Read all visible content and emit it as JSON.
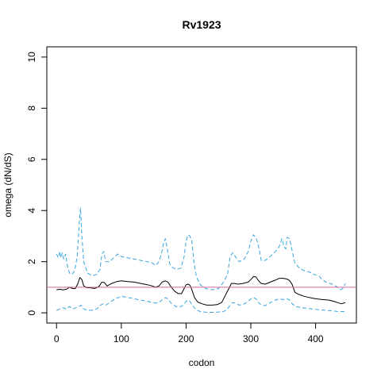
{
  "chart_data": {
    "type": "line",
    "title": "Rv1923",
    "xlabel": "codon",
    "ylabel": "omega (dN/dS)",
    "xlim": [
      -15,
      463
    ],
    "ylim": [
      -0.4,
      10.4
    ],
    "x_ticks": [
      0,
      100,
      200,
      300,
      400
    ],
    "y_ticks": [
      0,
      2,
      4,
      6,
      8,
      10
    ],
    "grid": false,
    "legend": "none",
    "reference_line": {
      "y": 1,
      "color": "#d0679b"
    },
    "series": [
      {
        "role": "upper",
        "color": "#39a6dc",
        "dash": true,
        "points": [
          [
            0,
            2.3
          ],
          [
            3,
            2.15
          ],
          [
            5,
            2.4
          ],
          [
            7,
            2.15
          ],
          [
            9,
            2.35
          ],
          [
            11,
            2.1
          ],
          [
            14,
            2.3
          ],
          [
            17,
            1.8
          ],
          [
            20,
            1.55
          ],
          [
            24,
            1.5
          ],
          [
            28,
            1.65
          ],
          [
            32,
            2.2
          ],
          [
            35,
            3.5
          ],
          [
            37,
            4.1
          ],
          [
            39,
            3.0
          ],
          [
            42,
            2.0
          ],
          [
            48,
            1.55
          ],
          [
            55,
            1.45
          ],
          [
            62,
            1.5
          ],
          [
            67,
            1.7
          ],
          [
            70,
            2.3
          ],
          [
            73,
            2.4
          ],
          [
            76,
            2.0
          ],
          [
            82,
            2.0
          ],
          [
            90,
            2.2
          ],
          [
            95,
            2.3
          ],
          [
            100,
            2.2
          ],
          [
            110,
            2.15
          ],
          [
            120,
            2.1
          ],
          [
            130,
            2.05
          ],
          [
            140,
            2.0
          ],
          [
            148,
            1.95
          ],
          [
            153,
            1.85
          ],
          [
            158,
            2.0
          ],
          [
            162,
            2.3
          ],
          [
            165,
            2.7
          ],
          [
            168,
            2.9
          ],
          [
            171,
            2.5
          ],
          [
            175,
            1.9
          ],
          [
            180,
            1.75
          ],
          [
            186,
            1.7
          ],
          [
            192,
            1.75
          ],
          [
            197,
            2.2
          ],
          [
            200,
            2.8
          ],
          [
            203,
            3.05
          ],
          [
            206,
            3.0
          ],
          [
            209,
            2.8
          ],
          [
            212,
            2.0
          ],
          [
            216,
            1.4
          ],
          [
            222,
            1.1
          ],
          [
            230,
            0.95
          ],
          [
            240,
            0.9
          ],
          [
            250,
            0.95
          ],
          [
            258,
            1.2
          ],
          [
            264,
            1.5
          ],
          [
            268,
            2.2
          ],
          [
            272,
            2.35
          ],
          [
            276,
            2.2
          ],
          [
            282,
            2.0
          ],
          [
            290,
            2.1
          ],
          [
            296,
            2.4
          ],
          [
            300,
            2.8
          ],
          [
            304,
            3.05
          ],
          [
            308,
            2.95
          ],
          [
            312,
            2.6
          ],
          [
            316,
            2.05
          ],
          [
            322,
            2.05
          ],
          [
            330,
            2.2
          ],
          [
            338,
            2.4
          ],
          [
            344,
            2.6
          ],
          [
            348,
            2.9
          ],
          [
            351,
            2.6
          ],
          [
            354,
            2.5
          ],
          [
            356,
            2.95
          ],
          [
            360,
            2.9
          ],
          [
            364,
            2.4
          ],
          [
            368,
            1.95
          ],
          [
            375,
            1.75
          ],
          [
            382,
            1.65
          ],
          [
            390,
            1.6
          ],
          [
            398,
            1.5
          ],
          [
            405,
            1.45
          ],
          [
            410,
            1.3
          ],
          [
            416,
            1.2
          ],
          [
            422,
            1.15
          ],
          [
            428,
            1.1
          ],
          [
            434,
            1.0
          ],
          [
            438,
            0.9
          ],
          [
            442,
            0.95
          ],
          [
            446,
            1.15
          ]
        ]
      },
      {
        "role": "estimate",
        "color": "#000000",
        "dash": false,
        "points": [
          [
            0,
            0.9
          ],
          [
            5,
            0.92
          ],
          [
            10,
            0.9
          ],
          [
            15,
            0.92
          ],
          [
            20,
            1.0
          ],
          [
            25,
            0.95
          ],
          [
            29,
            0.95
          ],
          [
            33,
            1.15
          ],
          [
            36,
            1.38
          ],
          [
            39,
            1.3
          ],
          [
            42,
            1.05
          ],
          [
            47,
            0.98
          ],
          [
            52,
            0.98
          ],
          [
            58,
            0.95
          ],
          [
            62,
            0.98
          ],
          [
            66,
            1.05
          ],
          [
            70,
            1.2
          ],
          [
            74,
            1.18
          ],
          [
            78,
            1.05
          ],
          [
            85,
            1.15
          ],
          [
            93,
            1.22
          ],
          [
            100,
            1.25
          ],
          [
            110,
            1.22
          ],
          [
            120,
            1.2
          ],
          [
            130,
            1.15
          ],
          [
            140,
            1.1
          ],
          [
            148,
            1.05
          ],
          [
            153,
            1.0
          ],
          [
            158,
            1.05
          ],
          [
            163,
            1.2
          ],
          [
            168,
            1.25
          ],
          [
            172,
            1.2
          ],
          [
            176,
            1.05
          ],
          [
            182,
            0.85
          ],
          [
            188,
            0.75
          ],
          [
            193,
            0.75
          ],
          [
            197,
            0.95
          ],
          [
            200,
            1.1
          ],
          [
            203,
            1.12
          ],
          [
            206,
            1.08
          ],
          [
            209,
            0.9
          ],
          [
            213,
            0.6
          ],
          [
            218,
            0.42
          ],
          [
            225,
            0.35
          ],
          [
            232,
            0.3
          ],
          [
            240,
            0.3
          ],
          [
            248,
            0.32
          ],
          [
            255,
            0.4
          ],
          [
            262,
            0.75
          ],
          [
            266,
            0.95
          ],
          [
            270,
            1.15
          ],
          [
            275,
            1.15
          ],
          [
            280,
            1.12
          ],
          [
            288,
            1.15
          ],
          [
            296,
            1.2
          ],
          [
            300,
            1.3
          ],
          [
            304,
            1.42
          ],
          [
            308,
            1.4
          ],
          [
            312,
            1.25
          ],
          [
            316,
            1.15
          ],
          [
            322,
            1.12
          ],
          [
            330,
            1.2
          ],
          [
            338,
            1.28
          ],
          [
            344,
            1.35
          ],
          [
            350,
            1.35
          ],
          [
            356,
            1.32
          ],
          [
            360,
            1.25
          ],
          [
            364,
            1.1
          ],
          [
            368,
            0.8
          ],
          [
            374,
            0.72
          ],
          [
            382,
            0.65
          ],
          [
            390,
            0.6
          ],
          [
            400,
            0.55
          ],
          [
            410,
            0.52
          ],
          [
            420,
            0.5
          ],
          [
            428,
            0.45
          ],
          [
            434,
            0.4
          ],
          [
            440,
            0.35
          ],
          [
            446,
            0.4
          ]
        ]
      },
      {
        "role": "lower",
        "color": "#39a6dc",
        "dash": true,
        "points": [
          [
            0,
            0.1
          ],
          [
            5,
            0.15
          ],
          [
            10,
            0.2
          ],
          [
            15,
            0.15
          ],
          [
            20,
            0.25
          ],
          [
            25,
            0.15
          ],
          [
            30,
            0.2
          ],
          [
            35,
            0.25
          ],
          [
            38,
            0.3
          ],
          [
            42,
            0.15
          ],
          [
            48,
            0.1
          ],
          [
            55,
            0.1
          ],
          [
            62,
            0.15
          ],
          [
            68,
            0.3
          ],
          [
            72,
            0.35
          ],
          [
            76,
            0.3
          ],
          [
            82,
            0.4
          ],
          [
            90,
            0.55
          ],
          [
            96,
            0.6
          ],
          [
            100,
            0.65
          ],
          [
            110,
            0.6
          ],
          [
            120,
            0.55
          ],
          [
            130,
            0.5
          ],
          [
            140,
            0.45
          ],
          [
            148,
            0.4
          ],
          [
            155,
            0.38
          ],
          [
            160,
            0.45
          ],
          [
            165,
            0.55
          ],
          [
            169,
            0.6
          ],
          [
            173,
            0.5
          ],
          [
            178,
            0.35
          ],
          [
            184,
            0.25
          ],
          [
            190,
            0.22
          ],
          [
            196,
            0.3
          ],
          [
            200,
            0.45
          ],
          [
            203,
            0.5
          ],
          [
            206,
            0.45
          ],
          [
            210,
            0.3
          ],
          [
            215,
            0.12
          ],
          [
            222,
            0.05
          ],
          [
            232,
            0.02
          ],
          [
            245,
            0.02
          ],
          [
            258,
            0.05
          ],
          [
            264,
            0.15
          ],
          [
            268,
            0.3
          ],
          [
            272,
            0.4
          ],
          [
            276,
            0.38
          ],
          [
            282,
            0.3
          ],
          [
            290,
            0.35
          ],
          [
            296,
            0.45
          ],
          [
            300,
            0.55
          ],
          [
            304,
            0.6
          ],
          [
            308,
            0.55
          ],
          [
            312,
            0.4
          ],
          [
            316,
            0.3
          ],
          [
            322,
            0.28
          ],
          [
            330,
            0.4
          ],
          [
            338,
            0.5
          ],
          [
            344,
            0.55
          ],
          [
            350,
            0.52
          ],
          [
            356,
            0.55
          ],
          [
            360,
            0.5
          ],
          [
            364,
            0.35
          ],
          [
            370,
            0.25
          ],
          [
            378,
            0.2
          ],
          [
            386,
            0.18
          ],
          [
            395,
            0.15
          ],
          [
            405,
            0.12
          ],
          [
            415,
            0.1
          ],
          [
            425,
            0.08
          ],
          [
            435,
            0.05
          ],
          [
            446,
            0.05
          ]
        ]
      }
    ]
  }
}
